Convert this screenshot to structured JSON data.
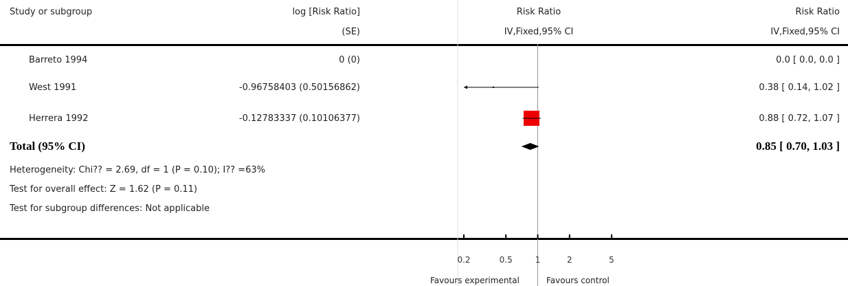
{
  "header": {
    "study_col": "Study or subgroup",
    "effect_col_line1": "log [Risk Ratio]",
    "effect_col_line2": "(SE)",
    "plot_col_line1": "Risk Ratio",
    "plot_col_line2": "IV,Fixed,95% CI",
    "ci_col_line1": "Risk Ratio",
    "ci_col_line2": "IV,Fixed,95% CI"
  },
  "studies": [
    {
      "name": "Barreto 1994",
      "logrr_se": "0 (0)",
      "ci_text": "0.0 [ 0.0, 0.0 ]"
    },
    {
      "name": "West 1991",
      "logrr_se": "-0.96758403 (0.50156862)",
      "ci_text": "0.38 [ 0.14, 1.02 ]"
    },
    {
      "name": "Herrera 1992",
      "logrr_se": "-0.12783337 (0.10106377)",
      "ci_text": "0.88 [ 0.72, 1.07 ]"
    }
  ],
  "total": {
    "label": "Total (95% CI)",
    "ci_text": "0.85 [ 0.70, 1.03 ]"
  },
  "notes": {
    "heterogeneity": "Heterogeneity: Chi?? = 2.69, df = 1 (P = 0.10); I?? =63%",
    "overall": "Test for overall effect: Z = 1.62 (P = 0.11)",
    "subgroup": "Test for subgroup differences: Not applicable"
  },
  "axis": {
    "ticks": [
      "0.2",
      "0.5",
      "1",
      "2",
      "5"
    ],
    "left_label": "Favours experimental",
    "right_label": "Favours control"
  },
  "colors": {
    "box": "#ee0000",
    "line": "#000000",
    "ref": "#999999"
  },
  "chart_data": {
    "type": "forest",
    "scale": "log",
    "xlim": [
      0.2,
      5
    ],
    "ticks": [
      0.2,
      0.5,
      1,
      2,
      5
    ],
    "null_value": 1,
    "studies": [
      {
        "name": "Barreto 1994",
        "rr": null,
        "lower": null,
        "upper": null
      },
      {
        "name": "West 1991",
        "rr": 0.38,
        "lower": 0.14,
        "upper": 1.02,
        "arrow_left": true
      },
      {
        "name": "Herrera 1992",
        "rr": 0.88,
        "lower": 0.72,
        "upper": 1.07
      }
    ],
    "pooled": {
      "rr": 0.85,
      "lower": 0.7,
      "upper": 1.03
    }
  }
}
